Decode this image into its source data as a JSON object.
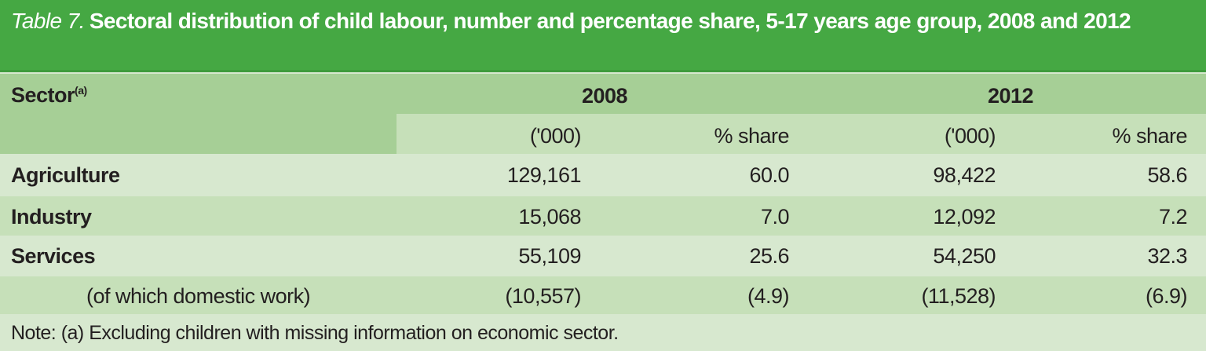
{
  "title": {
    "label": "Table 7.",
    "text": "Sectoral distribution of child labour, number and percentage share, 5-17 years age group, 2008 and 2012"
  },
  "header": {
    "sector": "Sector",
    "sector_note": "(a)",
    "years": [
      "2008",
      "2012"
    ],
    "sub": [
      "('000)",
      "% share",
      "('000)",
      "% share"
    ]
  },
  "rows": [
    {
      "sector": "Agriculture",
      "values": [
        "129,161",
        "60.0",
        "98,422",
        "58.6"
      ]
    },
    {
      "sector": "Industry",
      "values": [
        "15,068",
        "7.0",
        "12,092",
        "7.2"
      ]
    },
    {
      "sector": "Services",
      "values": [
        "55,109",
        "25.6",
        "54,250",
        "32.3"
      ]
    },
    {
      "sector": "(of which domestic work)",
      "values": [
        "(10,557)",
        "(4.9)",
        "(11,528)",
        "(6.9)"
      ]
    }
  ],
  "note": "Note: (a) Excluding children with missing information on economic sector.",
  "colors": {
    "title_bg": "#45a843",
    "header_bg": "#a6cf96",
    "row_light": "#d7e8cf",
    "row_dark": "#c6e0b9"
  }
}
